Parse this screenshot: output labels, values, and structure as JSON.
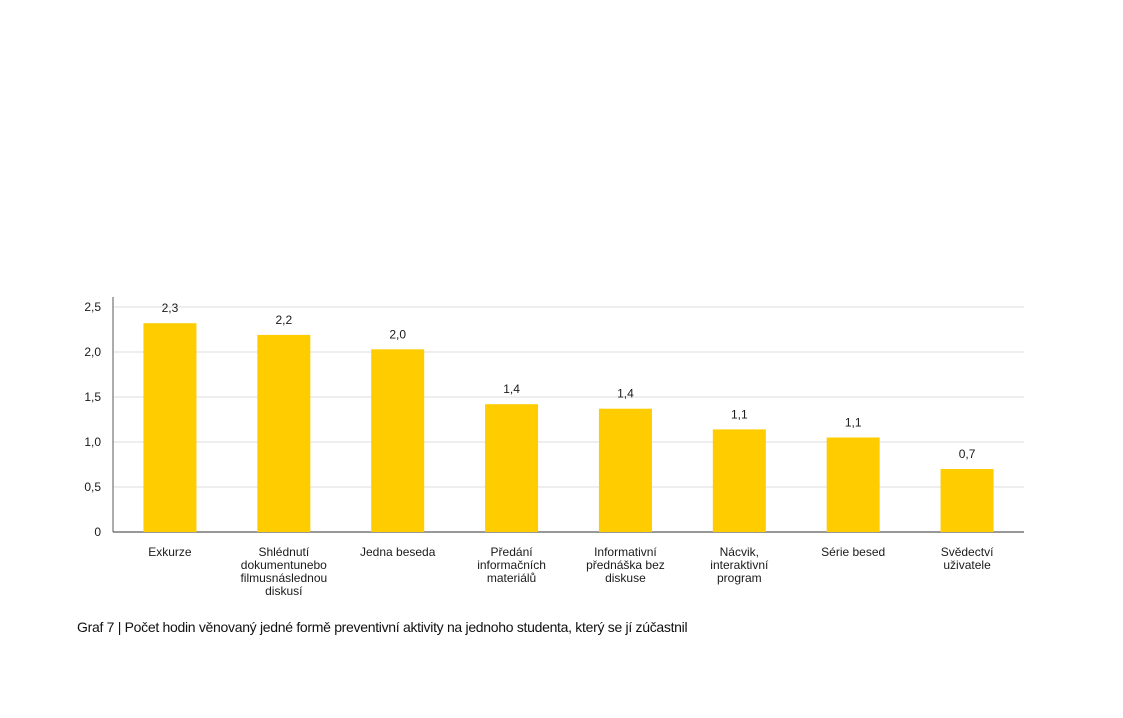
{
  "chart_data": {
    "type": "bar",
    "categories": [
      [
        "Exkurze"
      ],
      [
        "Shlédnutí",
        "dokumentunebo",
        "filmusnáslednou",
        "diskusí"
      ],
      [
        "Jedna beseda"
      ],
      [
        "Předání",
        "informačních",
        "materiálů"
      ],
      [
        "Informativní",
        "přednáška bez",
        "diskuse"
      ],
      [
        "Nácvik,",
        "interaktivní",
        "program"
      ],
      [
        "Série besed"
      ],
      [
        "Svědectví",
        "uživatele"
      ]
    ],
    "values": [
      2.32,
      2.19,
      2.03,
      1.42,
      1.37,
      1.14,
      1.05,
      0.7
    ],
    "data_labels": [
      "2,3",
      "2,2",
      "2,0",
      "1,4",
      "1,4",
      "1,1",
      "1,1",
      "0,7"
    ],
    "yticks": [
      0,
      0.5,
      1.0,
      1.5,
      2.0,
      2.5
    ],
    "ytick_labels": [
      "0",
      "0,5",
      "1,0",
      "1,5",
      "2,0",
      "2,5"
    ],
    "ylim": [
      0,
      2.5
    ],
    "grid": true,
    "bar_color": "#ffcc00",
    "grid_color": "#dcdcdc",
    "axis_color": "#5a5a5a"
  },
  "caption": "Graf 7 | Počet hodin věnovaný jedné formě preventivní aktivity na jednoho studenta, který se jí zúčastnil"
}
